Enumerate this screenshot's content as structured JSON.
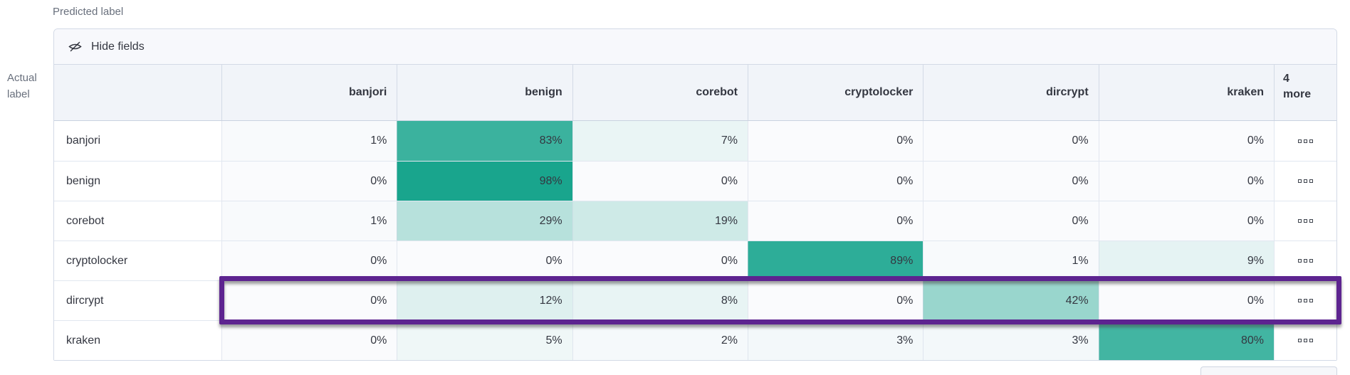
{
  "axes": {
    "predicted_label": "Predicted label",
    "actual_label_line1": "Actual",
    "actual_label_line2": "label"
  },
  "toolbar": {
    "hide_fields_label": "Hide fields",
    "icon": "eye-closed-icon"
  },
  "matrix": {
    "columns": [
      "banjori",
      "benign",
      "corebot",
      "cryptolocker",
      "dircrypt",
      "kraken"
    ],
    "more_column_line1": "4",
    "more_column_line2": "more",
    "value_suffix": "%",
    "rows": [
      {
        "label": "banjori",
        "values": [
          1,
          83,
          7,
          0,
          0,
          0
        ]
      },
      {
        "label": "benign",
        "values": [
          0,
          98,
          0,
          0,
          0,
          0
        ]
      },
      {
        "label": "corebot",
        "values": [
          1,
          29,
          19,
          0,
          0,
          0
        ]
      },
      {
        "label": "cryptolocker",
        "values": [
          0,
          0,
          0,
          89,
          1,
          9
        ]
      },
      {
        "label": "dircrypt",
        "values": [
          0,
          12,
          8,
          0,
          42,
          0
        ]
      },
      {
        "label": "kraken",
        "values": [
          0,
          5,
          2,
          3,
          3,
          80
        ]
      }
    ],
    "row_actions_icon": "boxes-horizontal-icon"
  },
  "highlight": {
    "row_label": "dircrypt",
    "color": "#5d2490"
  },
  "colors": {
    "heat_base": "#fafbfd",
    "heat_max": "#14a38b",
    "toolbar_bg": "#f7f8fc",
    "header_bg": "#f1f4f9",
    "border": "#d3dae6",
    "text": "#343741",
    "muted_text": "#69707d"
  },
  "chart_data": {
    "type": "heatmap",
    "x_label": "Predicted label",
    "y_label": "Actual label",
    "x_categories": [
      "banjori",
      "benign",
      "corebot",
      "cryptolocker",
      "dircrypt",
      "kraken"
    ],
    "y_categories": [
      "banjori",
      "benign",
      "corebot",
      "cryptolocker",
      "dircrypt",
      "kraken"
    ],
    "values_percent": [
      [
        1,
        83,
        7,
        0,
        0,
        0
      ],
      [
        0,
        98,
        0,
        0,
        0,
        0
      ],
      [
        1,
        29,
        19,
        0,
        0,
        0
      ],
      [
        0,
        0,
        0,
        89,
        1,
        9
      ],
      [
        0,
        12,
        8,
        0,
        42,
        0
      ],
      [
        0,
        5,
        2,
        3,
        3,
        80
      ]
    ],
    "hidden_columns_indicator": "4 more",
    "color_scale": {
      "domain": [
        0,
        100
      ],
      "min_color": "#fafbfd",
      "max_color": "#14a38b"
    },
    "highlighted_row": "dircrypt",
    "legend_position": "none",
    "grid": true
  }
}
